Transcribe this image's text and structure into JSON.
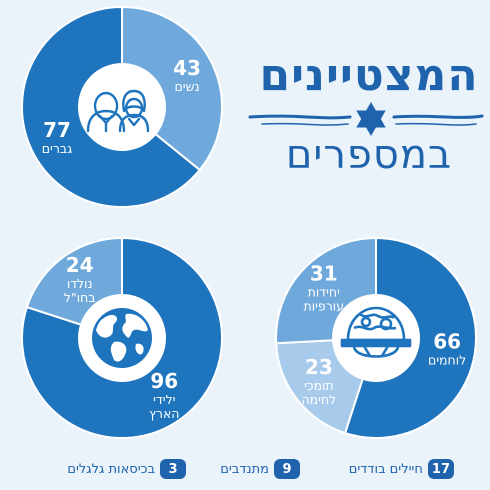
{
  "title": {
    "line1": "המצטיינים",
    "line2": "במספרים"
  },
  "colors": {
    "dark": "#1f74be",
    "light": "#6fa9dc",
    "lighter": "#a8cbec",
    "text_blue": "#1f63ad",
    "background": "#eaf2fa"
  },
  "icons": [
    "people-icon",
    "globe-icon",
    "helmet-icon",
    "star-of-david-icon"
  ],
  "chart_data": [
    {
      "type": "pie",
      "categories": [
        "נשים",
        "גברים"
      ],
      "values": [
        43,
        77
      ],
      "colors": [
        "#6fa9dc",
        "#1f74be"
      ],
      "labels": [
        {
          "value": "43",
          "text": [
            "נשים"
          ]
        },
        {
          "value": "77",
          "text": [
            "גברים"
          ]
        }
      ],
      "center_icon": "people-icon"
    },
    {
      "type": "pie",
      "categories": [
        "ילידי הארץ",
        "נולדו בחו\"ל"
      ],
      "values": [
        96,
        24
      ],
      "colors": [
        "#1f74be",
        "#6fa9dc"
      ],
      "labels": [
        {
          "value": "96",
          "text": [
            "ילידי",
            "הארץ"
          ]
        },
        {
          "value": "24",
          "text": [
            "נולדו",
            "בחו\"ל"
          ]
        }
      ],
      "center_icon": "globe-icon"
    },
    {
      "type": "pie",
      "categories": [
        "לוחמים",
        "תומכי לחימה",
        "יחידות עורפיות"
      ],
      "values": [
        66,
        23,
        31
      ],
      "colors": [
        "#1f74be",
        "#a8cbec",
        "#6fa9dc"
      ],
      "labels": [
        {
          "value": "66",
          "text": [
            "לוחמים"
          ]
        },
        {
          "value": "23",
          "text": [
            "תומכי",
            "לחימה"
          ]
        },
        {
          "value": "31",
          "text": [
            "יחידות",
            "עורפיות"
          ]
        }
      ],
      "center_icon": "helmet-icon"
    }
  ],
  "footer": [
    {
      "count": "17",
      "label": "חיילים בודדים"
    },
    {
      "count": "9",
      "label": "מתנדבים"
    },
    {
      "count": "3",
      "label": "בכיסאות גלגלים"
    }
  ]
}
